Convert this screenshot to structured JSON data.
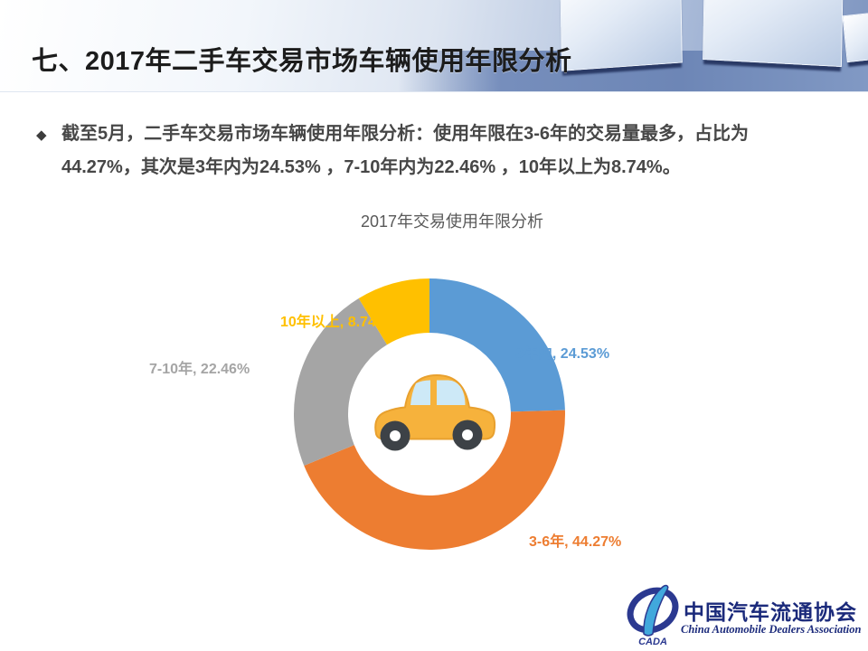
{
  "slide": {
    "header": {
      "title": "七、2017年二手车交易市场车辆使用年限分析"
    },
    "bullet": {
      "marker": "◆",
      "lines": [
        "截至5月，二手车交易市场车辆使用年限分析：使用年限在3-6年的交易量最多，占比为",
        "44.27%，其次是3年内为24.53% ，7-10年内为22.46% ，10年以上为8.74%。"
      ]
    },
    "footer": {
      "logo_acronym": "CADA",
      "org_name_zh": "中国汽车流通协会",
      "org_name_en": "China Automobile Dealers Association",
      "logo_navy": "#2b3990",
      "logo_lightblue": "#41a8dc"
    }
  },
  "chart_data": {
    "type": "pie",
    "subtype": "donut",
    "title": "2017年交易使用年限分析",
    "categories": [
      "3年内",
      "3-6年",
      "7-10年",
      "10年以上"
    ],
    "values": [
      24.53,
      44.27,
      22.46,
      8.74
    ],
    "unit": "%",
    "colors": [
      "#5B9BD5",
      "#ED7D31",
      "#A5A5A5",
      "#FFC000"
    ],
    "start_angle_deg": 0,
    "direction": "clockwise",
    "inner_radius_ratio": 0.6,
    "center_icon": "car",
    "legend": "none",
    "labels": [
      {
        "text": "3年内, 24.53%"
      },
      {
        "text": "3-6年, 44.27%"
      },
      {
        "text": "7-10年, 22.46%"
      },
      {
        "text": "10年以上, 8.74%"
      }
    ]
  }
}
